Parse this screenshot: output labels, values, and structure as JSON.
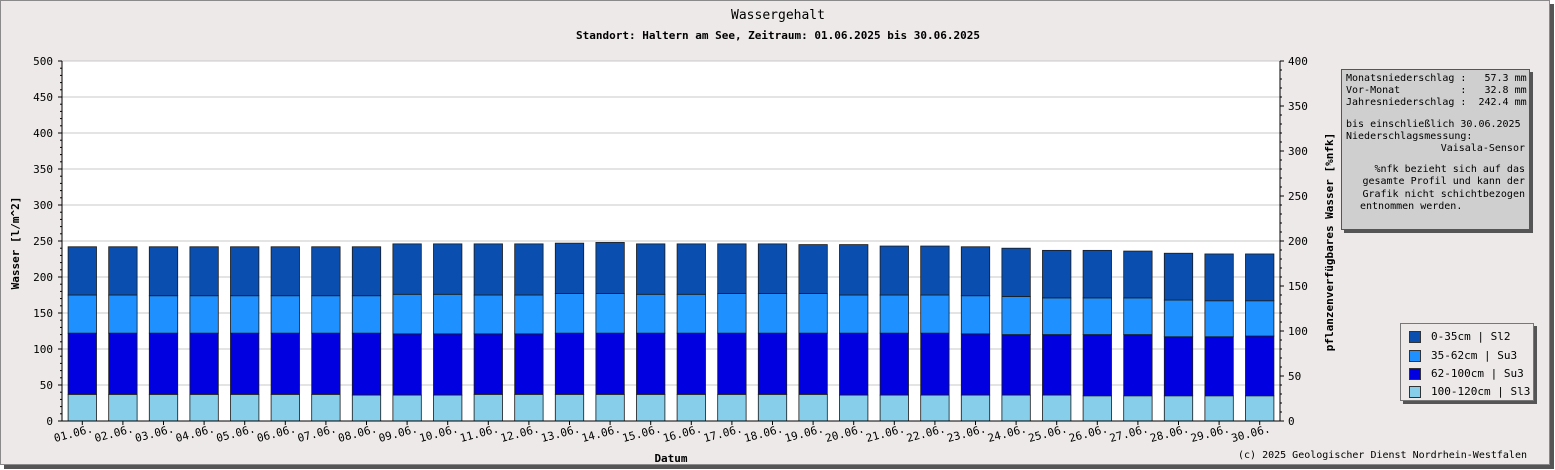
{
  "chart_data": {
    "type": "bar",
    "stacked": true,
    "title": "Wassergehalt",
    "subtitle": "Standort: Haltern am See, Zeitraum: 01.06.2025 bis 30.06.2025",
    "xlabel": "Datum",
    "ylabel": "Wasser [l/m^2]",
    "y2label": "pflanzenverfügbares Wasser [%nfk]",
    "ylim": [
      0,
      500
    ],
    "y2lim": [
      0,
      400
    ],
    "yticks": [
      0,
      50,
      100,
      150,
      200,
      250,
      300,
      350,
      400,
      450,
      500
    ],
    "y2ticks": [
      0,
      50,
      100,
      150,
      200,
      250,
      300,
      350,
      400
    ],
    "grid": true,
    "legend_position": "right",
    "categories": [
      "01.06.",
      "02.06.",
      "03.06.",
      "04.06.",
      "05.06.",
      "06.06.",
      "07.06.",
      "08.06.",
      "09.06.",
      "10.06.",
      "11.06.",
      "12.06.",
      "13.06.",
      "14.06.",
      "15.06.",
      "16.06.",
      "17.06.",
      "18.06.",
      "19.06.",
      "20.06.",
      "21.06.",
      "22.06.",
      "23.06.",
      "24.06.",
      "25.06.",
      "26.06.",
      "27.06.",
      "28.06.",
      "29.06.",
      "30.06."
    ],
    "series": [
      {
        "name": "100-120cm | Sl3",
        "color": "#87ceeb",
        "values": [
          37,
          37,
          37,
          37,
          37,
          37,
          37,
          36,
          36,
          36,
          37,
          37,
          37,
          37,
          37,
          37,
          37,
          37,
          37,
          36,
          36,
          36,
          36,
          36,
          36,
          35,
          35,
          35,
          35,
          35
        ]
      },
      {
        "name": "62-100cm | Su3",
        "color": "#0000e0",
        "values": [
          85,
          85,
          85,
          85,
          85,
          85,
          85,
          86,
          85,
          85,
          84,
          84,
          85,
          85,
          85,
          85,
          85,
          85,
          85,
          86,
          86,
          86,
          85,
          84,
          84,
          85,
          85,
          82,
          82,
          83
        ]
      },
      {
        "name": "35-62cm | Su3",
        "color": "#1e90ff",
        "values": [
          53,
          53,
          52,
          52,
          52,
          52,
          52,
          52,
          55,
          55,
          54,
          54,
          55,
          55,
          54,
          54,
          55,
          55,
          55,
          53,
          53,
          53,
          53,
          53,
          51,
          51,
          51,
          51,
          50,
          49
        ]
      },
      {
        "name": "0-35cm | Sl2",
        "color": "#0a4fb0",
        "values": [
          67,
          67,
          68,
          68,
          68,
          68,
          68,
          68,
          70,
          70,
          71,
          71,
          70,
          71,
          70,
          70,
          69,
          69,
          68,
          70,
          68,
          68,
          68,
          67,
          66,
          66,
          65,
          65,
          65,
          65
        ]
      }
    ]
  },
  "info": {
    "line1": "Monatsniederschlag :   57.3 mm",
    "line2": "Vor-Monat          :   32.8 mm",
    "line3": "Jahresniederschlag :  242.4 mm",
    "line4": "bis einschließlich 30.06.2025",
    "line5": "Niederschlagsmessung:",
    "line6": "Vaisala-Sensor",
    "line7": "%nfk bezieht sich auf das",
    "line8": "gesamte Profil und kann der",
    "line9": "Grafik nicht schichtbezogen",
    "line10": "entnommen werden."
  },
  "legend": {
    "items": [
      {
        "label": "0-35cm | Sl2",
        "color": "#0a4fb0"
      },
      {
        "label": "35-62cm | Su3",
        "color": "#1e90ff"
      },
      {
        "label": "62-100cm | Su3",
        "color": "#0000e0"
      },
      {
        "label": "100-120cm | Sl3",
        "color": "#87ceeb"
      }
    ]
  },
  "copyright": "(c) 2025 Geologischer Dienst Nordrhein-Westfalen"
}
